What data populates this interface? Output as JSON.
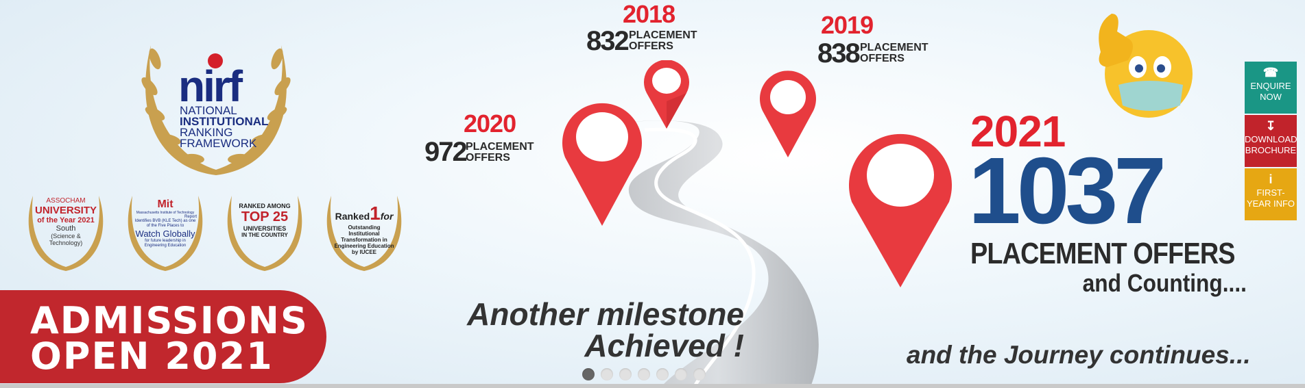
{
  "banner": {
    "placements": [
      {
        "year": "2020",
        "count": "972",
        "label_line1": "PLACEMENT",
        "label_line2": "OFFERS"
      },
      {
        "year": "2018",
        "count": "832",
        "label_line1": "PLACEMENT",
        "label_line2": "OFFERS"
      },
      {
        "year": "2019",
        "count": "838",
        "label_line1": "PLACEMENT",
        "label_line2": "OFFERS"
      }
    ],
    "headline": {
      "year": "2021",
      "count": "1037",
      "offers": "PLACEMENT OFFERS",
      "counting": "and Counting...."
    },
    "milestone_line1": "Another milestone",
    "milestone_line2": "Achieved !",
    "journey": "and the Journey continues...",
    "admissions_line1": "ADMISSIONS",
    "admissions_line2": "OPEN 2021",
    "nirf": {
      "logo": "nirf",
      "line1": "NATIONAL",
      "line2": "INSTITUTIONAL",
      "line3": "RANKING",
      "line4": "FRAMEWORK"
    },
    "awards": [
      {
        "l1": "ASSOCHAM",
        "l2": "UNIVERSITY",
        "l3": "of the Year 2021",
        "l4": "South",
        "l5": "(Science & Technology)"
      },
      {
        "l1": "Mit",
        "l2": "Massachusetts Institute of Technology",
        "l3": "Report",
        "l4": "Identifies BVB (KLE Tech) as one of the Five Places to",
        "l5": "Watch Globally",
        "l6": "for future leadership in Engineering Education"
      },
      {
        "l1": "RANKED AMONG",
        "l2": "TOP 25",
        "l3": "UNIVERSITIES",
        "l4": "IN THE COUNTRY"
      },
      {
        "l1": "Ranked",
        "l2": "1",
        "l3": "for",
        "l4": "Outstanding Institutional Transformation in Engineering Education",
        "l5": "by IUCEE"
      }
    ]
  },
  "side_buttons": [
    {
      "label1": "ENQUIRE",
      "label2": "NOW",
      "icon": "phone-icon",
      "color": "#1a9685"
    },
    {
      "label1": "DOWNLOAD",
      "label2": "BROCHURE",
      "icon": "download-icon",
      "color": "#c1232b"
    },
    {
      "label1": "FIRST-",
      "label2": "YEAR INFO",
      "icon": "info-icon",
      "color": "#e6a713"
    }
  ],
  "carousel": {
    "slide_count": 7,
    "active_index": 0
  },
  "colors": {
    "accent_red": "#e2232e",
    "navy": "#1f4e8c",
    "gold": "#c9a04f"
  }
}
